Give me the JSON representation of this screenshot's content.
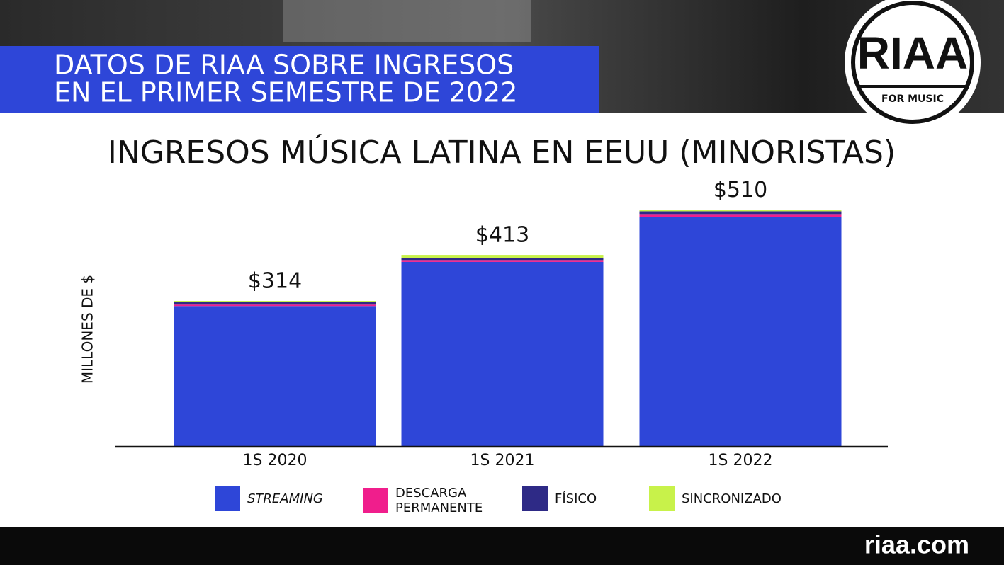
{
  "header": {
    "title_lines": [
      "DATOS DE RIAA SOBRE INGRESOS",
      "EN EL PRIMER SEMESTRE DE 2022"
    ]
  },
  "logo": {
    "text": "RIAA",
    "subtext": "FOR MUSIC"
  },
  "footer": {
    "url": "riaa.com"
  },
  "chart_data": {
    "type": "stacked_bar",
    "title": "INGRESOS MÚSICA LATINA EN EEUU (MINORISTAS)",
    "y_label": "MILLONES DE $",
    "categories": [
      "1S 2020",
      "1S 2021",
      "1S 2022"
    ],
    "series": [
      {
        "name": "STREAMING",
        "color": "#2e46d8",
        "values": [
          303,
          398,
          495
        ]
      },
      {
        "name": "DESCARGA PERMANENTE",
        "color": "#f01e8c",
        "values": [
          3,
          4,
          6
        ]
      },
      {
        "name": "FÍSICO",
        "color": "#2e2a86",
        "values": [
          5,
          5,
          6
        ]
      },
      {
        "name": "SINCRONIZADO",
        "color": "#c8f24a",
        "values": [
          3,
          6,
          3
        ]
      }
    ],
    "totals": [
      314,
      413,
      510
    ],
    "total_labels": [
      "$314",
      "$413",
      "$510"
    ],
    "ylim": [
      0,
      560
    ],
    "legend": "bottom"
  }
}
